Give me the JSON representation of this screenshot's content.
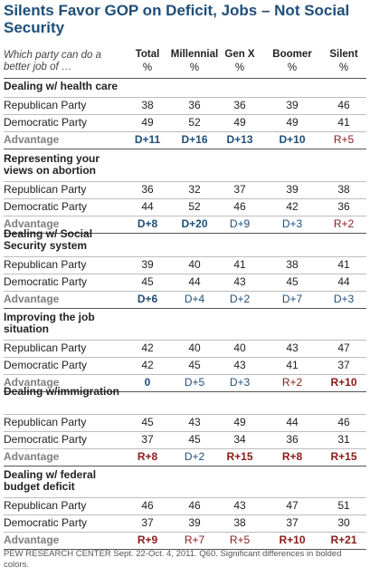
{
  "title": "Silents Favor GOP on Deficit, Jobs – Not Social Security",
  "header_question": "Which party can do a better job of …",
  "columns": [
    "Total",
    "Millennial",
    "Gen X",
    "Boomer",
    "Silent"
  ],
  "column_unit": "%",
  "colors": {
    "title": "#1f4e79",
    "democratic": "#1f4e79",
    "republican": "#8b1a1a",
    "label_gray": "#7f7f7f"
  },
  "chart_data": {
    "type": "table",
    "title": "Silents Favor GOP on Deficit, Jobs – Not Social Security",
    "row_labels": [
      "Republican Party",
      "Democratic Party",
      "Advantage"
    ],
    "sections": [
      {
        "title": "Dealing w/ health care",
        "republican": [
          38,
          36,
          36,
          39,
          46
        ],
        "democratic": [
          49,
          52,
          49,
          49,
          41
        ],
        "advantage": [
          {
            "text": "D+11",
            "party": "D",
            "bold": true
          },
          {
            "text": "D+16",
            "party": "D",
            "bold": true
          },
          {
            "text": "D+13",
            "party": "D",
            "bold": true
          },
          {
            "text": "D+10",
            "party": "D",
            "bold": true
          },
          {
            "text": "R+5",
            "party": "R",
            "bold": false
          }
        ]
      },
      {
        "title": "Representing your views on abortion",
        "republican": [
          36,
          32,
          37,
          39,
          38
        ],
        "democratic": [
          44,
          52,
          46,
          42,
          36
        ],
        "advantage": [
          {
            "text": "D+8",
            "party": "D",
            "bold": true
          },
          {
            "text": "D+20",
            "party": "D",
            "bold": true
          },
          {
            "text": "D+9",
            "party": "D",
            "bold": false
          },
          {
            "text": "D+3",
            "party": "D",
            "bold": false
          },
          {
            "text": "R+2",
            "party": "R",
            "bold": false
          }
        ]
      },
      {
        "title": "Dealing w/ Social Security system",
        "republican": [
          39,
          40,
          41,
          38,
          41
        ],
        "democratic": [
          45,
          44,
          43,
          45,
          44
        ],
        "advantage": [
          {
            "text": "D+6",
            "party": "D",
            "bold": true
          },
          {
            "text": "D+4",
            "party": "D",
            "bold": false
          },
          {
            "text": "D+2",
            "party": "D",
            "bold": false
          },
          {
            "text": "D+7",
            "party": "D",
            "bold": false
          },
          {
            "text": "D+3",
            "party": "D",
            "bold": false
          }
        ]
      },
      {
        "title": "Improving the job situation",
        "republican": [
          42,
          40,
          40,
          43,
          47
        ],
        "democratic": [
          42,
          45,
          43,
          41,
          37
        ],
        "advantage": [
          {
            "text": "0",
            "party": "D",
            "bold": true
          },
          {
            "text": "D+5",
            "party": "D",
            "bold": false
          },
          {
            "text": "D+3",
            "party": "D",
            "bold": false
          },
          {
            "text": "R+2",
            "party": "R",
            "bold": false
          },
          {
            "text": "R+10",
            "party": "R",
            "bold": true
          }
        ]
      },
      {
        "title": "Dealing w/immigration",
        "republican": [
          45,
          43,
          49,
          44,
          46
        ],
        "democratic": [
          37,
          45,
          34,
          36,
          31
        ],
        "advantage": [
          {
            "text": "R+8",
            "party": "R",
            "bold": true
          },
          {
            "text": "D+2",
            "party": "D",
            "bold": false
          },
          {
            "text": "R+15",
            "party": "R",
            "bold": true
          },
          {
            "text": "R+8",
            "party": "R",
            "bold": true
          },
          {
            "text": "R+15",
            "party": "R",
            "bold": true
          }
        ]
      },
      {
        "title": "Dealing w/ federal budget deficit",
        "republican": [
          46,
          46,
          43,
          47,
          51
        ],
        "democratic": [
          37,
          39,
          38,
          37,
          30
        ],
        "advantage": [
          {
            "text": "R+9",
            "party": "R",
            "bold": true
          },
          {
            "text": "R+7",
            "party": "R",
            "bold": false
          },
          {
            "text": "R+5",
            "party": "R",
            "bold": false
          },
          {
            "text": "R+10",
            "party": "R",
            "bold": true
          },
          {
            "text": "R+21",
            "party": "R",
            "bold": true
          }
        ]
      }
    ]
  },
  "footer": "PEW RESEARCH CENTER Sept. 22-Oct. 4, 2011. Q60. Significant differences in bolded colors."
}
